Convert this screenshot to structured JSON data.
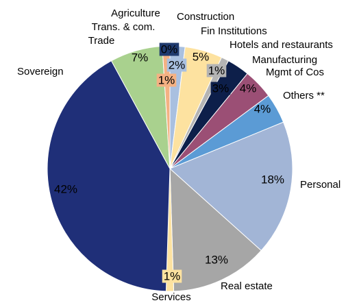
{
  "chart_data": {
    "type": "pie",
    "categories": [
      "Agriculture",
      "Construction",
      "Fin Institutions",
      "Hotels and restaurants",
      "Manufacturing",
      "Mgmt of Cos",
      "Others **",
      "Personal",
      "Real estate",
      "Services",
      "Sovereign",
      "Trade",
      "Trans. & com."
    ],
    "values": [
      0,
      2,
      5,
      1,
      3,
      4,
      4,
      18,
      13,
      1,
      42,
      7,
      1
    ],
    "value_labels": [
      "0%",
      "2%",
      "5%",
      "1%",
      "3%",
      "4%",
      "4%",
      "18%",
      "13%",
      "1%",
      "42%",
      "7%",
      "1%"
    ],
    "colors": [
      "#1f3a6e",
      "#a9c0e0",
      "#fde2a0",
      "#b4b4b4",
      "#0d1f4a",
      "#9b4f75",
      "#5b9bd5",
      "#a2b5d6",
      "#a6a6a6",
      "#fde2a0",
      "#1f2f78",
      "#a9d18e",
      "#f4b183"
    ]
  }
}
